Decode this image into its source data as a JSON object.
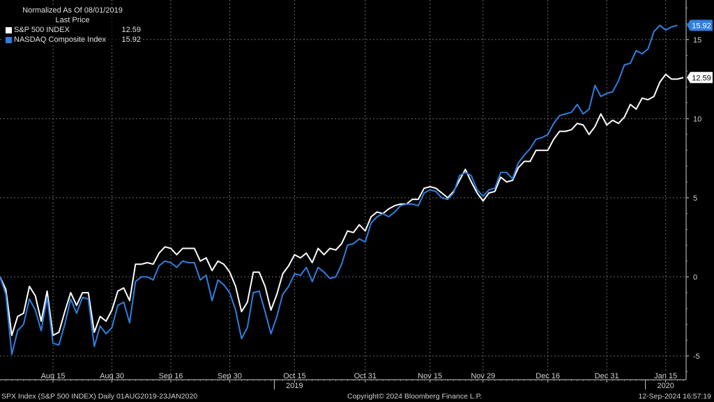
{
  "legend": {
    "title": "Normalized As Of 08/01/2019",
    "subtitle": "Last Price"
  },
  "footer": {
    "left": "SPX Index (S&P 500 INDEX)  Daily 01AUG2019-23JAN2020",
    "center": "Copyright© 2024 Bloomberg Finance L.P.",
    "right": "12-Sep-2024 16:57:19"
  },
  "chart_data": {
    "type": "line",
    "ylim": [
      -6.5,
      17.5
    ],
    "yticks": [
      -5,
      0,
      5,
      10,
      15
    ],
    "xlabels": [
      {
        "i": 9,
        "label": "Aug 15"
      },
      {
        "i": 19,
        "label": "Aug 30"
      },
      {
        "i": 29,
        "label": "Sep 16"
      },
      {
        "i": 39,
        "label": "Sep 30"
      },
      {
        "i": 50,
        "label": "Oct 15"
      },
      {
        "i": 62,
        "label": "Oct 31"
      },
      {
        "i": 73,
        "label": "Nov 15"
      },
      {
        "i": 82,
        "label": "Nov 29"
      },
      {
        "i": 93,
        "label": "Dec 16"
      },
      {
        "i": 103,
        "label": "Dec 31"
      },
      {
        "i": 113,
        "label": "Jan 15"
      }
    ],
    "year_labels": [
      {
        "i": 50,
        "label": "2019"
      },
      {
        "i": 113,
        "label": "2020"
      }
    ],
    "series": [
      {
        "name": "S&P 500 INDEX",
        "color": "#ffffff",
        "last": "12.59",
        "values": [
          0.0,
          -0.8,
          -3.7,
          -2.5,
          -2.3,
          -0.6,
          -1.2,
          -2.8,
          -0.9,
          -3.7,
          -3.5,
          -2.2,
          -1.0,
          -1.8,
          -1.0,
          -1.0,
          -3.5,
          -2.5,
          -2.8,
          -2.1,
          -0.9,
          -0.7,
          -1.5,
          0.8,
          0.8,
          0.9,
          0.8,
          1.5,
          1.9,
          1.8,
          1.4,
          1.8,
          1.8,
          1.8,
          1.0,
          1.2,
          0.4,
          1.0,
          0.8,
          0.3,
          -0.6,
          -2.2,
          -1.6,
          0.3,
          0.3,
          -0.6,
          -2.1,
          -1.1,
          0.2,
          0.7,
          1.4,
          1.2,
          1.5,
          0.9,
          1.8,
          1.4,
          1.8,
          1.7,
          2.1,
          2.9,
          2.8,
          3.3,
          2.9,
          3.8,
          4.1,
          4.0,
          4.3,
          4.5,
          4.6,
          4.6,
          4.9,
          4.9,
          5.6,
          5.7,
          5.6,
          5.3,
          5.0,
          5.4,
          6.1,
          6.8,
          6.0,
          5.3,
          4.8,
          5.3,
          5.4,
          6.3,
          6.0,
          6.1,
          6.9,
          7.3,
          7.3,
          8.0,
          8.0,
          8.0,
          8.7,
          9.2,
          9.2,
          9.3,
          9.7,
          9.6,
          9.0,
          9.5,
          10.3,
          9.6,
          9.9,
          9.7,
          10.1,
          10.9,
          10.6,
          11.3,
          11.2,
          11.4,
          12.3,
          12.8,
          12.5,
          12.5,
          12.6
        ]
      },
      {
        "name": "NASDAQ Composite Index",
        "color": "#2f7fe0",
        "last": "15.92",
        "values": [
          0.0,
          -1.1,
          -4.9,
          -3.4,
          -3.0,
          -1.4,
          -2.1,
          -3.4,
          -1.3,
          -4.2,
          -4.3,
          -3.0,
          -1.4,
          -2.3,
          -1.3,
          -1.4,
          -4.4,
          -3.1,
          -3.6,
          -3.2,
          -1.8,
          -1.6,
          -2.9,
          -0.3,
          -0.0,
          -0.0,
          -0.2,
          0.7,
          1.0,
          0.9,
          0.6,
          1.0,
          0.9,
          0.9,
          -0.2,
          0.1,
          -1.5,
          -0.2,
          -0.5,
          -1.0,
          -2.1,
          -3.9,
          -3.2,
          -1.0,
          -0.9,
          -2.2,
          -3.6,
          -2.5,
          -1.1,
          -0.6,
          0.2,
          0.1,
          0.6,
          -0.3,
          0.6,
          0.3,
          -0.1,
          0.0,
          0.8,
          2.0,
          2.1,
          2.4,
          2.2,
          3.4,
          3.8,
          4.0,
          3.8,
          4.1,
          4.5,
          4.6,
          4.6,
          4.5,
          5.3,
          5.5,
          5.4,
          5.0,
          4.9,
          5.3,
          6.4,
          6.6,
          6.4,
          5.5,
          5.1,
          5.5,
          5.6,
          6.6,
          6.6,
          6.2,
          7.2,
          7.7,
          8.1,
          8.7,
          8.8,
          9.0,
          9.7,
          10.2,
          10.3,
          10.4,
          10.9,
          10.3,
          10.6,
          12.1,
          11.4,
          11.6,
          11.7,
          12.4,
          13.4,
          13.5,
          14.3,
          14.1,
          14.4,
          15.5,
          15.9,
          15.6,
          15.8,
          15.9
        ]
      }
    ]
  }
}
